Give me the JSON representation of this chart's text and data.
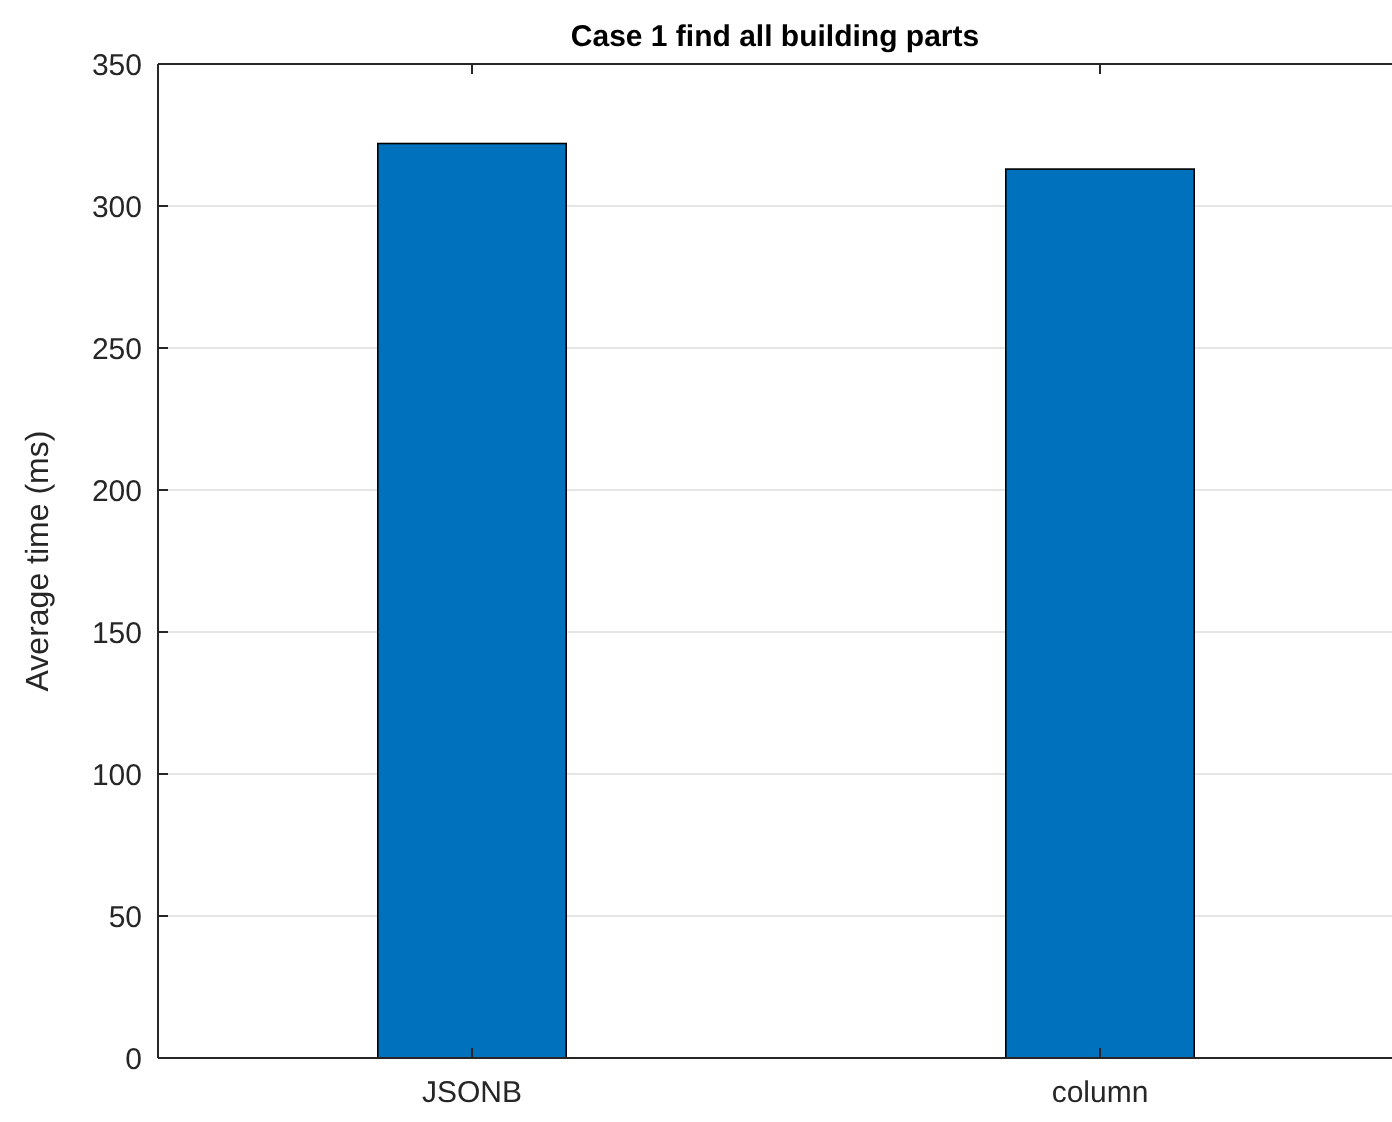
{
  "chart_data": {
    "type": "bar",
    "title": "Case 1 find all building parts",
    "ylabel": "Average time (ms)",
    "categories": [
      "JSONB",
      "column"
    ],
    "values": [
      322,
      313
    ],
    "color": "#0072bd",
    "ylim": [
      0,
      350
    ],
    "yticks": [
      0,
      50,
      100,
      150,
      200,
      250,
      300,
      350
    ],
    "grid": "y"
  }
}
